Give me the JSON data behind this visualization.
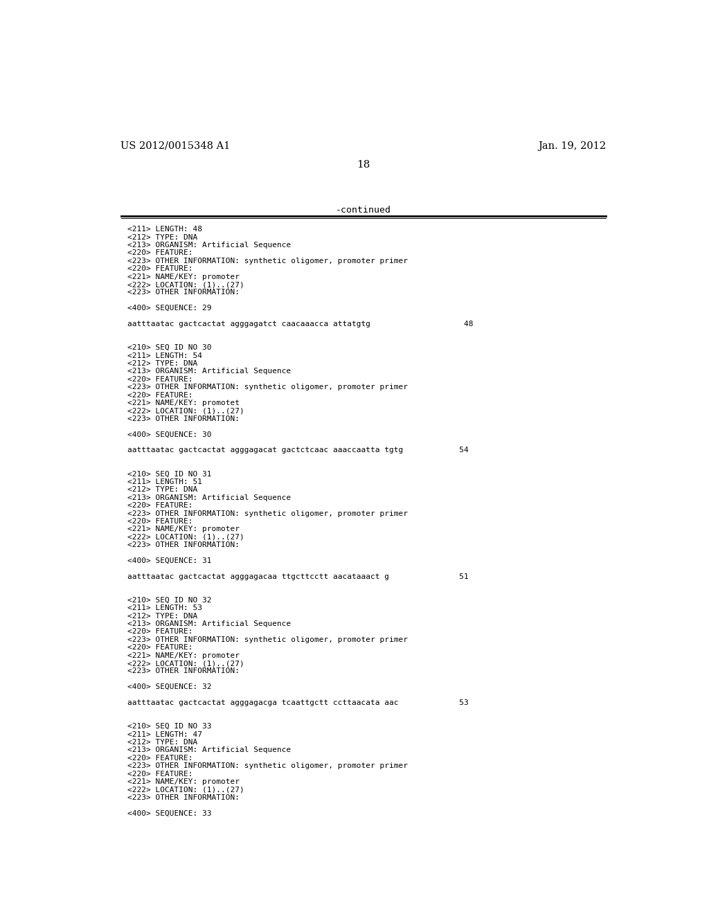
{
  "header_left": "US 2012/0015348 A1",
  "header_right": "Jan. 19, 2012",
  "page_number": "18",
  "continued_label": "-continued",
  "background_color": "#ffffff",
  "text_color": "#000000",
  "content_lines": [
    "<211> LENGTH: 48",
    "<212> TYPE: DNA",
    "<213> ORGANISM: Artificial Sequence",
    "<220> FEATURE:",
    "<223> OTHER INFORMATION: synthetic oligomer, promoter primer",
    "<220> FEATURE:",
    "<221> NAME/KEY: promoter",
    "<222> LOCATION: (1)..(27)",
    "<223> OTHER INFORMATION:",
    "",
    "<400> SEQUENCE: 29",
    "",
    "aatttaatac gactcactat agggagatct caacaaacca attatgtg                    48",
    "",
    "",
    "<210> SEQ ID NO 30",
    "<211> LENGTH: 54",
    "<212> TYPE: DNA",
    "<213> ORGANISM: Artificial Sequence",
    "<220> FEATURE:",
    "<223> OTHER INFORMATION: synthetic oligomer, promoter primer",
    "<220> FEATURE:",
    "<221> NAME/KEY: promotet",
    "<222> LOCATION: (1)..(27)",
    "<223> OTHER INFORMATION:",
    "",
    "<400> SEQUENCE: 30",
    "",
    "aatttaatac gactcactat agggagacat gactctcaac aaaccaatta tgtg            54",
    "",
    "",
    "<210> SEQ ID NO 31",
    "<211> LENGTH: 51",
    "<212> TYPE: DNA",
    "<213> ORGANISM: Artificial Sequence",
    "<220> FEATURE:",
    "<223> OTHER INFORMATION: synthetic oligomer, promoter primer",
    "<220> FEATURE:",
    "<221> NAME/KEY: promoter",
    "<222> LOCATION: (1)..(27)",
    "<223> OTHER INFORMATION:",
    "",
    "<400> SEQUENCE: 31",
    "",
    "aatttaatac gactcactat agggagacaa ttgcttcctt aacataaact g               51",
    "",
    "",
    "<210> SEQ ID NO 32",
    "<211> LENGTH: 53",
    "<212> TYPE: DNA",
    "<213> ORGANISM: Artificial Sequence",
    "<220> FEATURE:",
    "<223> OTHER INFORMATION: synthetic oligomer, promoter primer",
    "<220> FEATURE:",
    "<221> NAME/KEY: promoter",
    "<222> LOCATION: (1)..(27)",
    "<223> OTHER INFORMATION:",
    "",
    "<400> SEQUENCE: 32",
    "",
    "aatttaatac gactcactat agggagacga tcaattgctt ccttaacata aac             53",
    "",
    "",
    "<210> SEQ ID NO 33",
    "<211> LENGTH: 47",
    "<212> TYPE: DNA",
    "<213> ORGANISM: Artificial Sequence",
    "<220> FEATURE:",
    "<223> OTHER INFORMATION: synthetic oligomer, promoter primer",
    "<220> FEATURE:",
    "<221> NAME/KEY: promoter",
    "<222> LOCATION: (1)..(27)",
    "<223> OTHER INFORMATION:",
    "",
    "<400> SEQUENCE: 33"
  ]
}
